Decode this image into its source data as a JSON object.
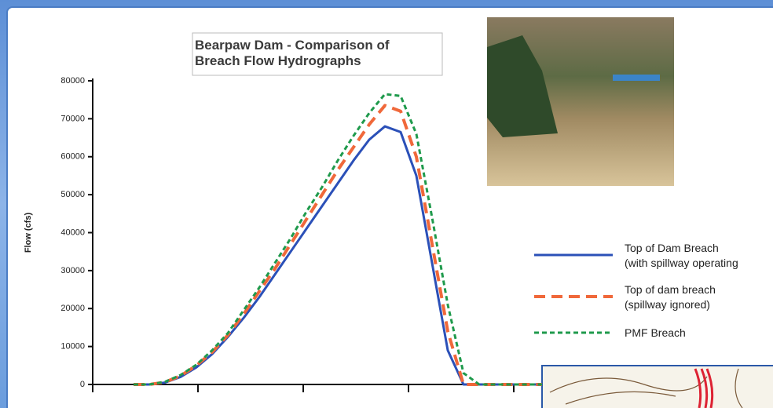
{
  "chart_data": {
    "type": "line",
    "title": "Bearpaw Dam - Comparison of\nBreach Flow Hydrographs",
    "y_label": "Flow (cfs)",
    "categories": [
      null,
      null,
      null,
      null,
      null,
      null,
      null,
      null,
      null,
      null,
      null,
      null,
      null,
      null,
      null,
      null,
      null,
      null,
      null,
      null,
      null,
      null,
      null,
      null,
      null,
      null,
      null
    ],
    "series": [
      {
        "name": "Top of Dam Breach\n(with spillway operating",
        "color": "#2b50b8",
        "values": [
          0,
          0,
          500,
          2000,
          4500,
          8000,
          12500,
          17500,
          23000,
          29000,
          35000,
          41000,
          47000,
          53000,
          59000,
          64500,
          68000,
          66500,
          55000,
          32000,
          9000,
          0,
          0,
          0,
          0,
          0,
          0
        ]
      },
      {
        "name": "Top of dam breach\n(spillway ignored)",
        "color": "#f0683a",
        "values": [
          0,
          0,
          600,
          2300,
          5000,
          8500,
          13000,
          18500,
          24500,
          30500,
          37000,
          43500,
          50000,
          56500,
          62500,
          68500,
          73500,
          72000,
          60000,
          37000,
          14000,
          0,
          0,
          0,
          0,
          0,
          0
        ]
      },
      {
        "name": "PMF Breach",
        "color": "#1f9a4c",
        "values": [
          0,
          0,
          700,
          2500,
          5200,
          9000,
          13500,
          19500,
          25500,
          32000,
          38500,
          45500,
          52000,
          59000,
          65500,
          71500,
          76500,
          76000,
          66000,
          44000,
          21000,
          3000,
          0,
          0,
          0,
          0,
          0
        ]
      }
    ],
    "ylim": [
      0,
      80000
    ],
    "yticks": [
      0,
      10000,
      20000,
      30000,
      40000,
      50000,
      60000,
      70000,
      80000
    ],
    "grid": false
  }
}
